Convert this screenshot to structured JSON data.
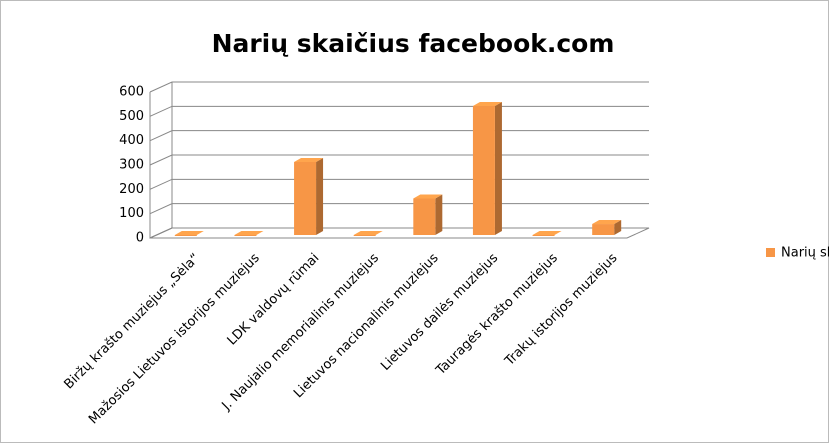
{
  "chart_data": {
    "type": "bar3d",
    "title": "Narių skaičius facebook.com",
    "categories": [
      "Biržų krašto muziejus „Sėla“",
      "Mažosios Lietuvos istorijos muziejus",
      "LDK valdovų rūmai",
      "J. Naujalio memorialinis muziejus",
      "Lietuvos nacionalinis muziejus",
      "Lietuvos dailės muziejus",
      "Tauragės krašto muziejus",
      "Trakų istorijos muziejus"
    ],
    "series": [
      {
        "name": "Narių skaičius",
        "color": "#f79646",
        "values": [
          0,
          0,
          300,
          0,
          150,
          530,
          0,
          45
        ]
      }
    ],
    "ylim": [
      0,
      600
    ],
    "yticks": [
      0,
      100,
      200,
      300,
      400,
      500,
      600
    ],
    "grid": true,
    "legend": "right"
  }
}
